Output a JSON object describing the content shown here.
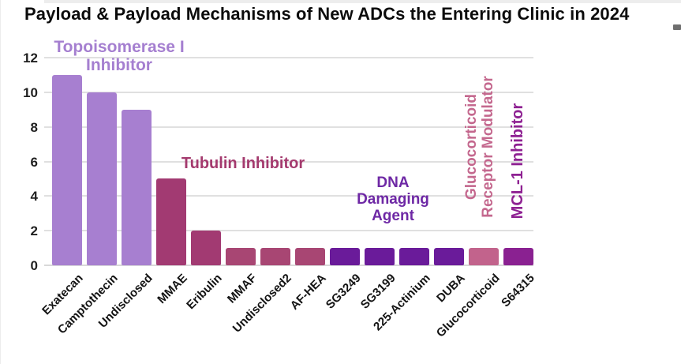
{
  "title": "Payload & Payload Mechanisms of New ADCs the Entering Clinic in 2024",
  "chart_data": {
    "type": "bar",
    "title": "Payload & Payload Mechanisms of New ADCs the Entering Clinic in 2024",
    "xlabel": "",
    "ylabel": "",
    "ylim": [
      0,
      12
    ],
    "yticks": [
      0,
      2,
      4,
      6,
      8,
      10,
      12
    ],
    "grid": true,
    "legend_position": "none",
    "categories": [
      "Exatecan",
      "Camptothecin",
      "Undisclosed",
      "MMAE",
      "Eribulin",
      "MMAF",
      "Undisclosed2",
      "AF-HEA",
      "SG3249",
      "SG3199",
      "225-Actinium",
      "DUBA",
      "Glucocorticoid",
      "S64315"
    ],
    "values": [
      11,
      10,
      9,
      5,
      2,
      1,
      1,
      1,
      1,
      1,
      1,
      1,
      1,
      1
    ],
    "bar_colors": [
      "#a77fd0",
      "#a77fd0",
      "#a77fd0",
      "#a23a72",
      "#a23a72",
      "#a84673",
      "#a84673",
      "#a84673",
      "#6a1b9a",
      "#6a1b9a",
      "#6a1b9a",
      "#6a1b9a",
      "#c2638c",
      "#8a2191"
    ],
    "groups": [
      {
        "label": "Topoisomerase I Inhibitor",
        "categories": [
          "Exatecan",
          "Camptothecin",
          "Undisclosed"
        ],
        "color": "#a57fd0"
      },
      {
        "label": "Tubulin Inhibitor",
        "categories": [
          "MMAE",
          "Eribulin",
          "MMAF",
          "Undisclosed2",
          "AF-HEA"
        ],
        "color": "#a43a6e"
      },
      {
        "label": "DNA Damaging Agent",
        "categories": [
          "SG3249",
          "SG3199",
          "225-Actinium",
          "DUBA"
        ],
        "color": "#6e28a5"
      },
      {
        "label": "Glucocorticoid Receptor Modulator",
        "categories": [
          "Glucocorticoid"
        ],
        "color": "#c4688e"
      },
      {
        "label": "MCL-1 Inhibitor",
        "categories": [
          "S64315"
        ],
        "color": "#8e2192"
      }
    ],
    "annotations": {
      "topoisomerase": {
        "line1": "Topoisomerase I",
        "line2": "Inhibitor",
        "color": "#a57fd0"
      },
      "tubulin": {
        "label": "Tubulin Inhibitor",
        "color": "#a43a6e"
      },
      "dna": {
        "line1": "DNA",
        "line2": "Damaging",
        "line3": "Agent",
        "color": "#6e28a5"
      },
      "glucocorticoid": {
        "line1": "Glucocorticoid",
        "line2": "Receptor Modulator",
        "color": "#c4688e"
      },
      "mcl1": {
        "label": "MCL-1 Inhibitor",
        "color": "#8e2192"
      }
    }
  }
}
